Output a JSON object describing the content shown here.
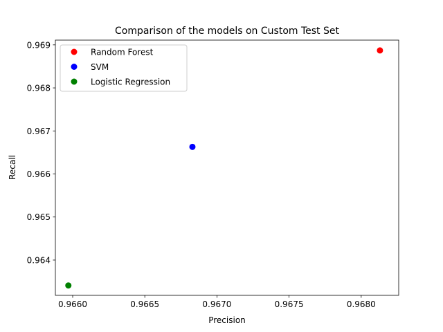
{
  "chart_data": {
    "type": "scatter",
    "title": "Comparison of the models on Custom Test Set",
    "xlabel": "Precision",
    "ylabel": "Recall",
    "xlim": [
      0.96588,
      0.96826
    ],
    "ylim": [
      0.96318,
      0.96911
    ],
    "xticks": [
      0.966,
      0.9665,
      0.967,
      0.9675,
      0.968
    ],
    "xtick_labels": [
      "0.9660",
      "0.9665",
      "0.9670",
      "0.9675",
      "0.9680"
    ],
    "yticks": [
      0.964,
      0.965,
      0.966,
      0.967,
      0.968,
      0.969
    ],
    "ytick_labels": [
      "0.964",
      "0.965",
      "0.966",
      "0.967",
      "0.968",
      "0.969"
    ],
    "grid": false,
    "legend_position": "top-left",
    "series": [
      {
        "name": "Random Forest",
        "color": "#ff0000",
        "x": [
          0.96813
        ],
        "y": [
          0.96887
        ]
      },
      {
        "name": "SVM",
        "color": "#0000ff",
        "x": [
          0.96683
        ],
        "y": [
          0.96663
        ]
      },
      {
        "name": "Logistic Regression",
        "color": "#008000",
        "x": [
          0.96597
        ],
        "y": [
          0.96341
        ]
      }
    ]
  }
}
